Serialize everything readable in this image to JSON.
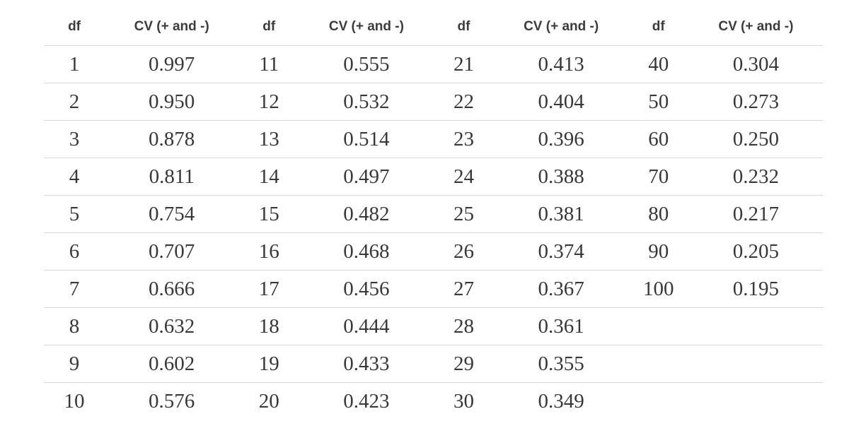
{
  "page": {
    "background": "#ffffff"
  },
  "colors": {
    "header_text": "#3c3c3c",
    "body_text": "#383838",
    "rule": "#d9d9d9"
  },
  "chart_data": {
    "type": "table",
    "layout": "four column-pairs (df, CV) side by side; light gray horizontal rules between rows; no outer border",
    "columns": [
      "df",
      "CV (+ and -)",
      "df",
      "CV (+ and -)",
      "df",
      "CV (+ and -)",
      "df",
      "CV (+ and -)"
    ],
    "rows": [
      [
        "1",
        "0.997",
        "11",
        "0.555",
        "21",
        "0.413",
        "40",
        "0.304"
      ],
      [
        "2",
        "0.950",
        "12",
        "0.532",
        "22",
        "0.404",
        "50",
        "0.273"
      ],
      [
        "3",
        "0.878",
        "13",
        "0.514",
        "23",
        "0.396",
        "60",
        "0.250"
      ],
      [
        "4",
        "0.811",
        "14",
        "0.497",
        "24",
        "0.388",
        "70",
        "0.232"
      ],
      [
        "5",
        "0.754",
        "15",
        "0.482",
        "25",
        "0.381",
        "80",
        "0.217"
      ],
      [
        "6",
        "0.707",
        "16",
        "0.468",
        "26",
        "0.374",
        "90",
        "0.205"
      ],
      [
        "7",
        "0.666",
        "17",
        "0.456",
        "27",
        "0.367",
        "100",
        "0.195"
      ],
      [
        "8",
        "0.632",
        "18",
        "0.444",
        "28",
        "0.361",
        "",
        ""
      ],
      [
        "9",
        "0.602",
        "19",
        "0.433",
        "29",
        "0.355",
        "",
        ""
      ],
      [
        "10",
        "0.576",
        "20",
        "0.423",
        "30",
        "0.349",
        "",
        ""
      ]
    ],
    "pairs": [
      {
        "df": [
          1,
          2,
          3,
          4,
          5,
          6,
          7,
          8,
          9,
          10
        ],
        "cv": [
          0.997,
          0.95,
          0.878,
          0.811,
          0.754,
          0.707,
          0.666,
          0.632,
          0.602,
          0.576
        ]
      },
      {
        "df": [
          11,
          12,
          13,
          14,
          15,
          16,
          17,
          18,
          19,
          20
        ],
        "cv": [
          0.555,
          0.532,
          0.514,
          0.497,
          0.482,
          0.468,
          0.456,
          0.444,
          0.433,
          0.423
        ]
      },
      {
        "df": [
          21,
          22,
          23,
          24,
          25,
          26,
          27,
          28,
          29,
          30
        ],
        "cv": [
          0.413,
          0.404,
          0.396,
          0.388,
          0.381,
          0.374,
          0.367,
          0.361,
          0.355,
          0.349
        ]
      },
      {
        "df": [
          40,
          50,
          60,
          70,
          80,
          90,
          100
        ],
        "cv": [
          0.304,
          0.273,
          0.25,
          0.232,
          0.217,
          0.205,
          0.195
        ]
      }
    ]
  }
}
